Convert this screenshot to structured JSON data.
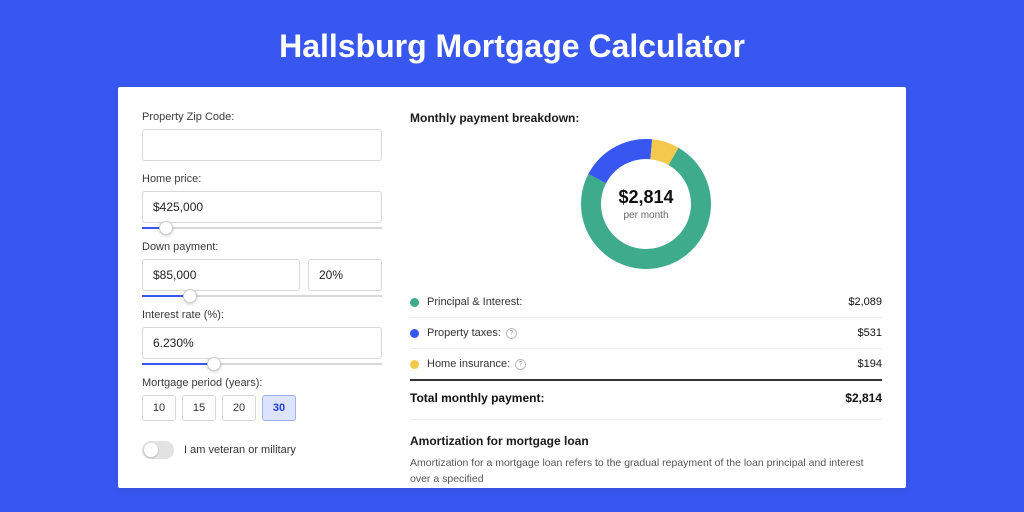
{
  "page": {
    "title": "Hallsburg Mortgage Calculator",
    "bg_color": "#3857f0",
    "card_bg": "#ffffff"
  },
  "form": {
    "zip": {
      "label": "Property Zip Code:",
      "value": ""
    },
    "home_price": {
      "label": "Home price:",
      "value": "$425,000",
      "slider_pct": 10
    },
    "down_payment": {
      "label": "Down payment:",
      "amount": "$85,000",
      "percent": "20%",
      "slider_pct": 20
    },
    "interest_rate": {
      "label": "Interest rate (%):",
      "value": "6.230%",
      "slider_pct": 30
    },
    "period": {
      "label": "Mortgage period (years):",
      "options": [
        "10",
        "15",
        "20",
        "30"
      ],
      "active": "30"
    },
    "veteran": {
      "label": "I am veteran or military",
      "checked": false
    }
  },
  "breakdown": {
    "title": "Monthly payment breakdown:",
    "center_value": "$2,814",
    "center_label": "per month",
    "donut": {
      "size": 130,
      "stroke_width": 20,
      "bg": "#ffffff",
      "segments": [
        {
          "label": "Principal & Interest:",
          "value": "$2,089",
          "color": "#3fab8d",
          "fraction": 0.742
        },
        {
          "label": "Property taxes:",
          "value": "$531",
          "color": "#3857f0",
          "fraction": 0.189,
          "info": true
        },
        {
          "label": "Home insurance:",
          "value": "$194",
          "color": "#f2c94c",
          "fraction": 0.069,
          "info": true
        }
      ]
    },
    "total": {
      "label": "Total monthly payment:",
      "value": "$2,814"
    }
  },
  "amortization": {
    "title": "Amortization for mortgage loan",
    "text": "Amortization for a mortgage loan refers to the gradual repayment of the loan principal and interest over a specified"
  },
  "colors": {
    "slider_fill": "#3857f0",
    "slider_track": "#d8d8d8",
    "border": "#d8d8d8",
    "text_primary": "#1a1a1a",
    "text_muted": "#666666"
  }
}
